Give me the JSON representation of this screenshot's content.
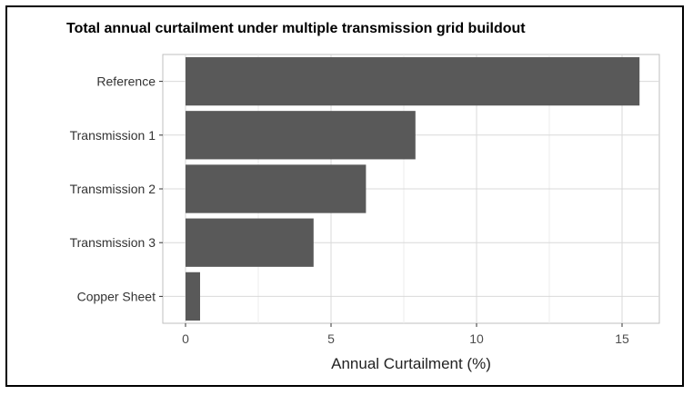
{
  "chart_data": {
    "type": "bar",
    "orientation": "horizontal",
    "title": "Total annual curtailment under multiple transmission grid buildout",
    "categories": [
      "Reference",
      "Transmission 1",
      "Transmission 2",
      "Transmission 3",
      "Copper Sheet"
    ],
    "values": [
      15.6,
      7.9,
      6.2,
      4.4,
      0.5
    ],
    "xlabel": "Annual Curtailment (%)",
    "ylabel": "",
    "xlim": [
      0,
      16
    ],
    "xticks": [
      "0",
      "5",
      "10",
      "15"
    ],
    "grid": true,
    "legend": "none",
    "bar_color": "#595959"
  }
}
